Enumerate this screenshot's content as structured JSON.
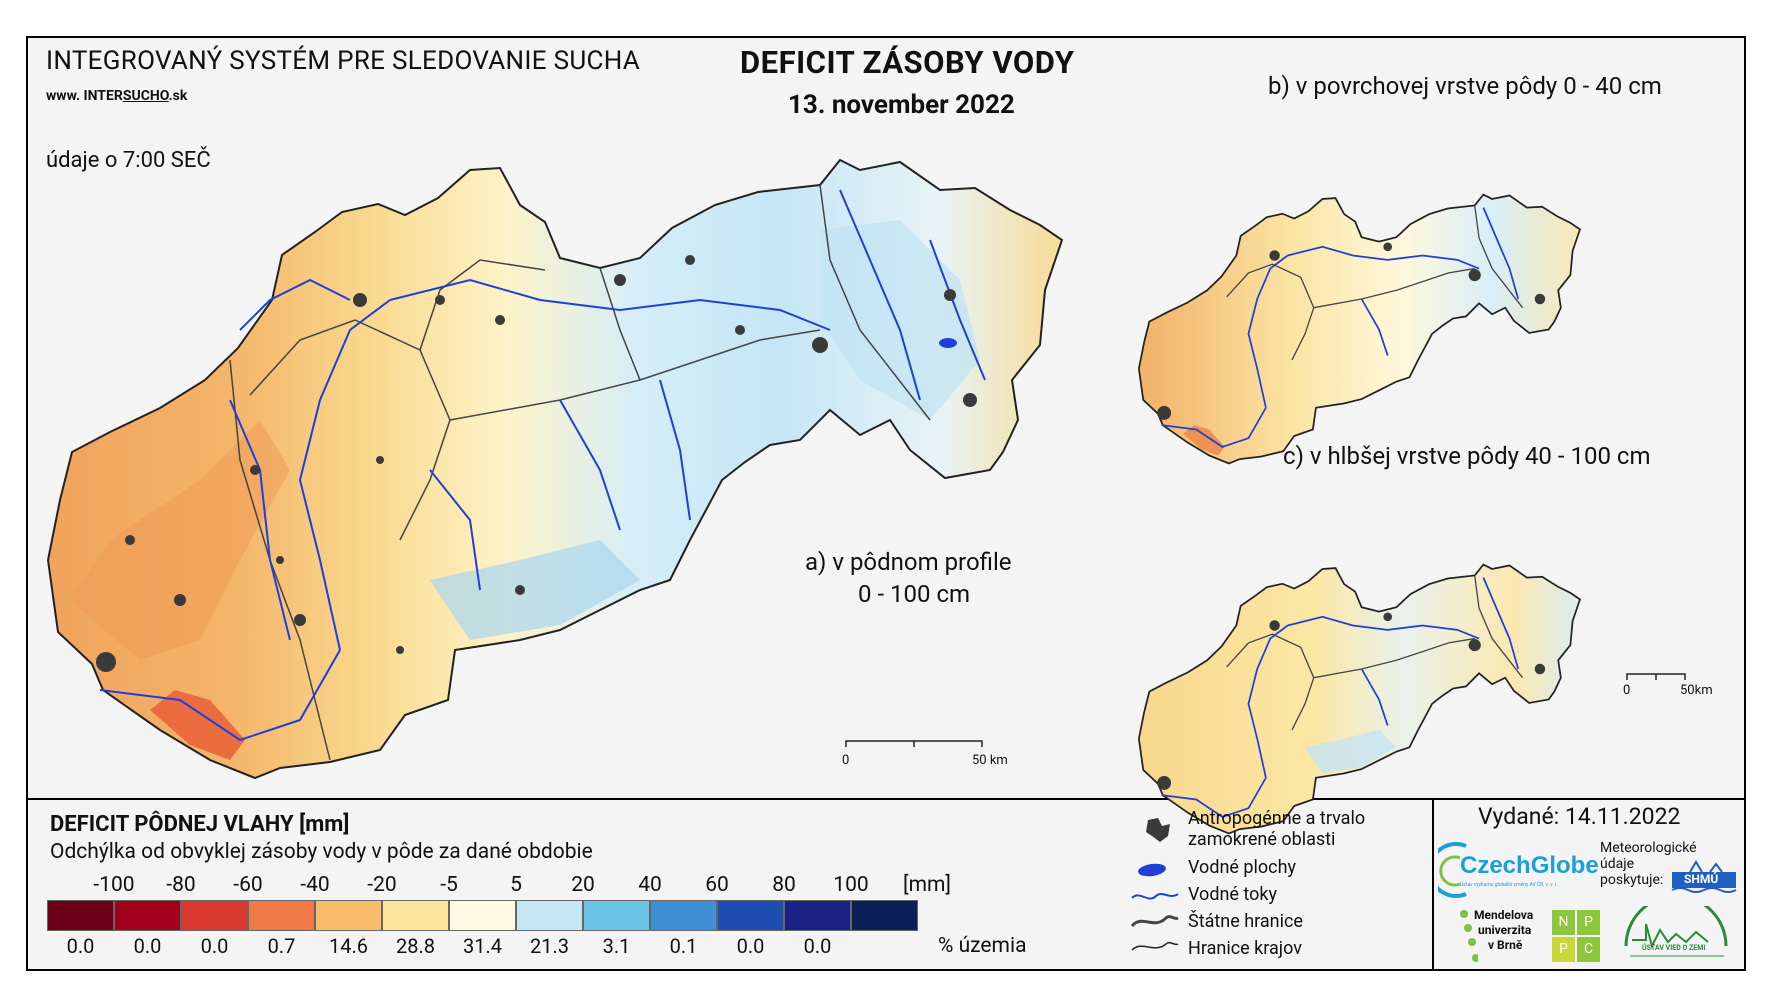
{
  "header": {
    "system_title": "INTEGROVANÝ SYSTÉM PRE SLEDOVANIE SUCHA",
    "website_prefix": "www. INTER",
    "website_underline": "SUCHO",
    "website_suffix": ".sk",
    "data_time": "údaje o 7:00 SEČ",
    "map_title": "DEFICIT ZÁSOBY VODY",
    "date": "13. november 2022"
  },
  "panels": {
    "a_line1": "a) v pôdnom profile",
    "a_line2": "0 - 100 cm",
    "b": "b) v povrchovej vrstve pôdy 0 - 40 cm",
    "c": "c) v hlbšej vrstve pôdy 40 - 100 cm"
  },
  "scale": {
    "main_zero": "0",
    "main_end": "50 km",
    "small_zero": "0",
    "small_end": "50km"
  },
  "legend": {
    "title": "DEFICIT PÔDNEJ VLAHY [mm]",
    "subtitle": "Odchýlka od obvyklej zásoby vody v pôde za dané obdobie",
    "unit": "[mm]",
    "area_label": "% územia",
    "ticks": [
      "-100",
      "-80",
      "-60",
      "-40",
      "-20",
      "-5",
      "5",
      "20",
      "40",
      "60",
      "80",
      "100"
    ],
    "classes": [
      {
        "color": "#6b0018",
        "pct": "0.0"
      },
      {
        "color": "#a0001c",
        "pct": "0.0"
      },
      {
        "color": "#d83a2e",
        "pct": "0.0"
      },
      {
        "color": "#f07a46",
        "pct": "0.7"
      },
      {
        "color": "#f8bd6c",
        "pct": "14.6"
      },
      {
        "color": "#fbe59a",
        "pct": "28.8"
      },
      {
        "color": "#fffce6",
        "pct": "31.4"
      },
      {
        "color": "#c6e7f4",
        "pct": "21.3"
      },
      {
        "color": "#6cc3e8",
        "pct": "3.1"
      },
      {
        "color": "#3e8fd4",
        "pct": "0.1"
      },
      {
        "color": "#1e4fb0",
        "pct": "0.0"
      },
      {
        "color": "#1b2084",
        "pct": "0.0"
      },
      {
        "color": "#0d1f57",
        "pct": ""
      }
    ]
  },
  "map_key": {
    "urban": "Antropogénne a trvalo zamokrené oblasti",
    "urban_line1": "Antropogénne a trvalo",
    "urban_line2": "zamokrené oblasti",
    "water": "Vodné plochy",
    "rivers": "Vodné toky",
    "state_border": "Štátne hranice",
    "region_border": "Hranice krajov"
  },
  "issued": "Vydané: 14.11.2022",
  "logos": {
    "czechglobe": "CzechGlobe",
    "czechglobe_sub": "Ústav výzkumu globální změny AV ČR, v. v. i.",
    "meteo_1": "Meteorologické",
    "meteo_2": "údaje",
    "meteo_3": "poskytuje:",
    "shmu": "SHMÚ",
    "mendel_1": "Mendelova",
    "mendel_2": "univerzita",
    "mendel_3": "v Brně",
    "nppc": [
      "N",
      "P",
      "P",
      "C"
    ],
    "uvz": "ÚSTAV VIED O ZEMI"
  },
  "colors": {
    "river": "#1f3fd6",
    "urban": "#3a3a3a",
    "border": "#333333",
    "frame": "#000000"
  }
}
